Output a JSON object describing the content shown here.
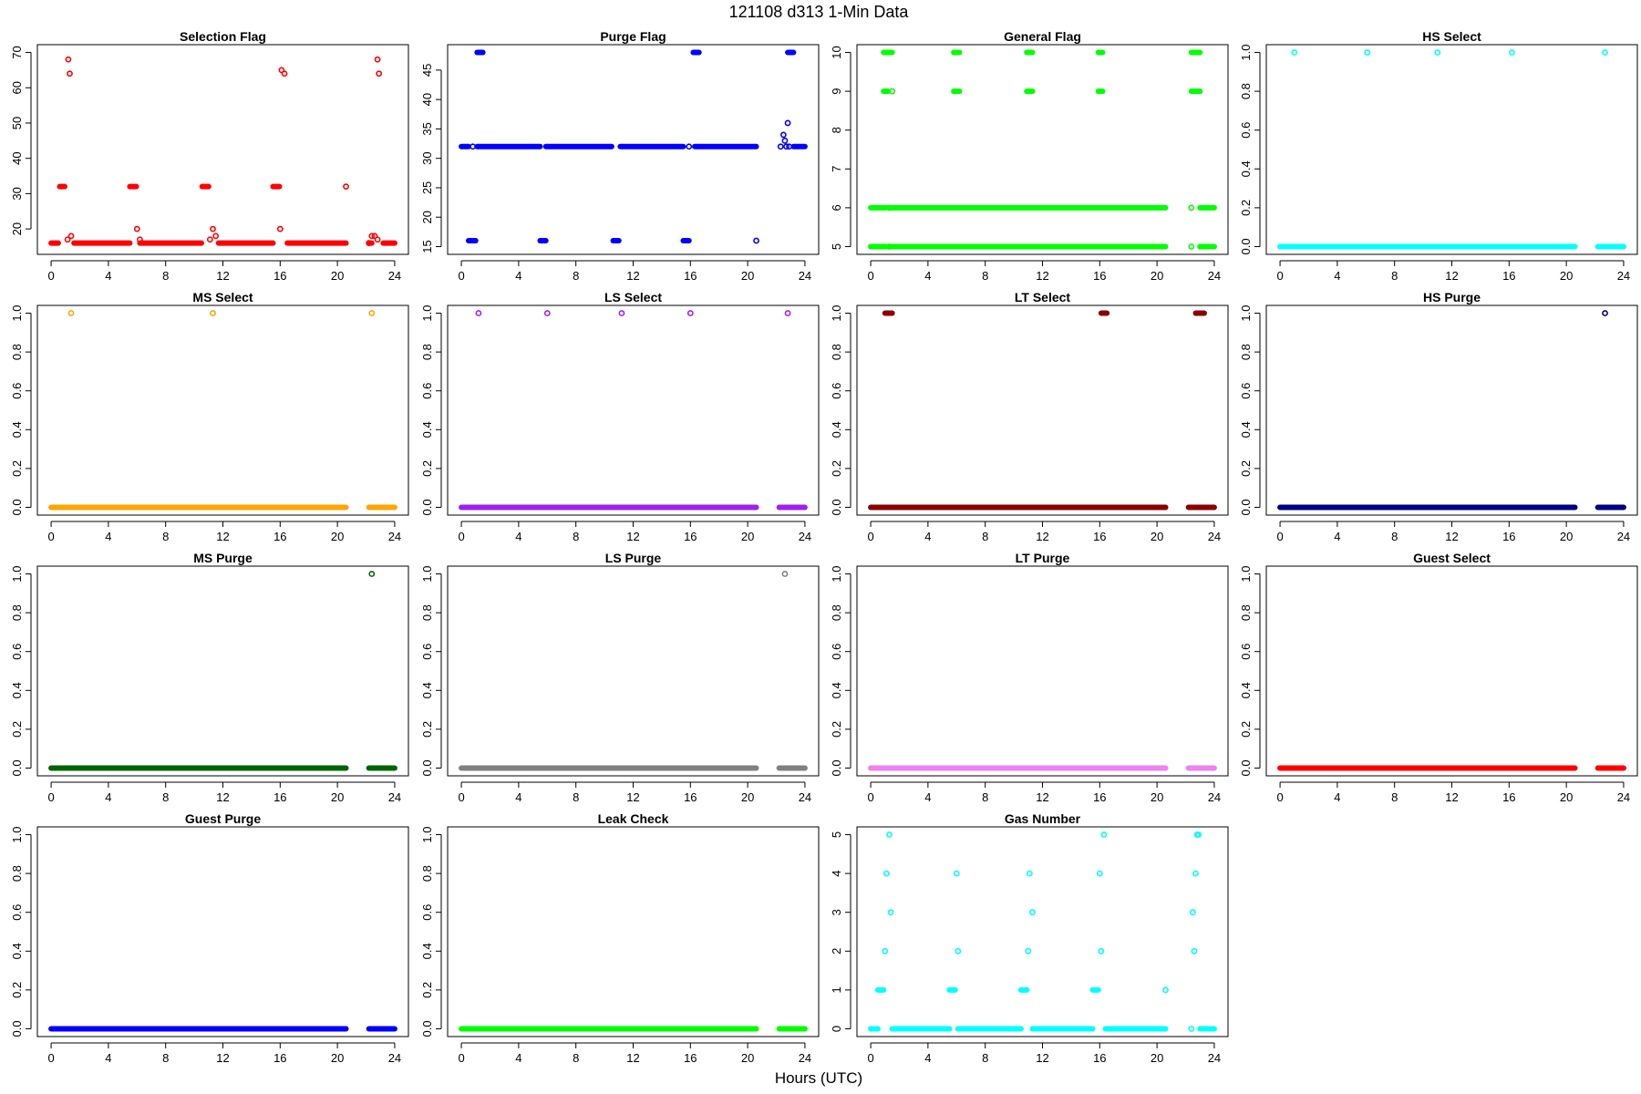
{
  "figure": {
    "title": "121108   d313   1-Min Data",
    "xlabel": "Hours (UTC)"
  },
  "chart_data": [
    {
      "type": "scatter",
      "title": "Selection Flag",
      "color": "#ff0000",
      "xlim": [
        0,
        24
      ],
      "ylim": [
        15,
        70
      ],
      "xticks": [
        0,
        4,
        8,
        12,
        16,
        20,
        24
      ],
      "yticks": [
        20,
        30,
        40,
        50,
        60,
        70
      ],
      "runs": [
        {
          "y": 16,
          "x": [
            [
              0.0,
              0.5
            ],
            [
              1.6,
              5.5
            ],
            [
              6.2,
              10.5
            ],
            [
              11.7,
              15.5
            ],
            [
              16.5,
              20.6
            ],
            [
              22.2,
              22.4
            ],
            [
              23.2,
              24.0
            ]
          ]
        },
        {
          "y": 32,
          "x": [
            [
              0.6,
              0.95
            ],
            [
              5.5,
              5.95
            ],
            [
              10.55,
              11.0
            ],
            [
              15.5,
              15.95
            ]
          ]
        }
      ],
      "points": [
        [
          1.15,
          17
        ],
        [
          1.4,
          18
        ],
        [
          1.2,
          68
        ],
        [
          1.3,
          64
        ],
        [
          6.0,
          20
        ],
        [
          6.2,
          17
        ],
        [
          11.1,
          17
        ],
        [
          11.3,
          20
        ],
        [
          11.5,
          18
        ],
        [
          16.0,
          20
        ],
        [
          16.1,
          65
        ],
        [
          16.3,
          64
        ],
        [
          20.6,
          32
        ],
        [
          22.2,
          16
        ],
        [
          22.4,
          18
        ],
        [
          22.6,
          18
        ],
        [
          22.8,
          17
        ],
        [
          22.8,
          68
        ],
        [
          22.9,
          64
        ]
      ]
    },
    {
      "type": "scatter",
      "title": "Purge Flag",
      "color": "#0000ff",
      "xlim": [
        0,
        24
      ],
      "ylim": [
        15,
        48
      ],
      "xticks": [
        0,
        4,
        8,
        12,
        16,
        20,
        24
      ],
      "yticks": [
        15,
        20,
        25,
        30,
        35,
        40,
        45
      ],
      "runs": [
        {
          "y": 32,
          "x": [
            [
              0.0,
              0.5
            ],
            [
              1.1,
              5.5
            ],
            [
              5.9,
              10.5
            ],
            [
              11.1,
              15.5
            ],
            [
              16.3,
              20.6
            ],
            [
              23.2,
              24.0
            ]
          ]
        },
        {
          "y": 16,
          "x": [
            [
              0.5,
              1.0
            ],
            [
              5.5,
              5.9
            ],
            [
              10.6,
              11.0
            ],
            [
              15.5,
              15.9
            ]
          ]
        },
        {
          "y": 48,
          "x": [
            [
              1.1,
              1.5
            ],
            [
              16.2,
              16.6
            ],
            [
              22.8,
              23.2
            ]
          ]
        }
      ],
      "points": [
        [
          0.8,
          32
        ],
        [
          15.9,
          32
        ],
        [
          20.6,
          16
        ],
        [
          22.3,
          32
        ],
        [
          22.5,
          34
        ],
        [
          22.6,
          33
        ],
        [
          22.7,
          32
        ],
        [
          22.8,
          36
        ],
        [
          22.9,
          32
        ]
      ]
    },
    {
      "type": "scatter",
      "title": "General Flag",
      "color": "#00ff00",
      "xlim": [
        0,
        24
      ],
      "ylim": [
        5,
        10
      ],
      "xticks": [
        0,
        4,
        8,
        12,
        16,
        20,
        24
      ],
      "yticks": [
        5,
        6,
        7,
        8,
        9,
        10
      ],
      "runs": [
        {
          "y": 5,
          "x": [
            [
              0.0,
              1.1
            ],
            [
              1.4,
              20.6
            ],
            [
              23.0,
              24.0
            ]
          ]
        },
        {
          "y": 6,
          "x": [
            [
              0.0,
              1.1
            ],
            [
              1.4,
              20.6
            ],
            [
              23.0,
              24.0
            ]
          ]
        },
        {
          "y": 10,
          "x": [
            [
              0.9,
              1.5
            ],
            [
              5.8,
              6.2
            ],
            [
              10.9,
              11.3
            ],
            [
              15.9,
              16.2
            ],
            [
              22.4,
              23.0
            ]
          ]
        },
        {
          "y": 9,
          "x": [
            [
              0.9,
              1.2
            ],
            [
              5.8,
              6.2
            ],
            [
              10.9,
              11.3
            ],
            [
              15.9,
              16.2
            ],
            [
              22.4,
              23.0
            ]
          ]
        }
      ],
      "points": [
        [
          1.3,
          5
        ],
        [
          1.3,
          6
        ],
        [
          1.5,
          9
        ],
        [
          22.4,
          5
        ],
        [
          22.4,
          6
        ]
      ]
    },
    {
      "type": "scatter",
      "title": "HS Select",
      "color": "#00ffff",
      "xlim": [
        0,
        24
      ],
      "ylim": [
        0,
        1
      ],
      "xticks": [
        0,
        4,
        8,
        12,
        16,
        20,
        24
      ],
      "yticks": [
        0.0,
        0.2,
        0.4,
        0.6,
        0.8,
        1.0
      ],
      "runs": [
        {
          "y": 0,
          "x": [
            [
              0.0,
              20.6
            ],
            [
              22.2,
              24.0
            ]
          ]
        }
      ],
      "points": [
        [
          1.0,
          1
        ],
        [
          6.1,
          1
        ],
        [
          11.0,
          1
        ],
        [
          16.2,
          1
        ],
        [
          22.7,
          1
        ]
      ]
    },
    {
      "type": "scatter",
      "title": "MS Select",
      "color": "#ffa500",
      "xlim": [
        0,
        24
      ],
      "ylim": [
        0,
        1
      ],
      "xticks": [
        0,
        4,
        8,
        12,
        16,
        20,
        24
      ],
      "yticks": [
        0.0,
        0.2,
        0.4,
        0.6,
        0.8,
        1.0
      ],
      "runs": [
        {
          "y": 0,
          "x": [
            [
              0.0,
              20.6
            ],
            [
              22.2,
              24.0
            ]
          ]
        }
      ],
      "points": [
        [
          1.4,
          1
        ],
        [
          11.3,
          1
        ],
        [
          22.4,
          1
        ]
      ]
    },
    {
      "type": "scatter",
      "title": "LS Select",
      "color": "#a020f0",
      "xlim": [
        0,
        24
      ],
      "ylim": [
        0,
        1
      ],
      "xticks": [
        0,
        4,
        8,
        12,
        16,
        20,
        24
      ],
      "yticks": [
        0.0,
        0.2,
        0.4,
        0.6,
        0.8,
        1.0
      ],
      "runs": [
        {
          "y": 0,
          "x": [
            [
              0.0,
              20.6
            ],
            [
              22.2,
              24.0
            ]
          ]
        }
      ],
      "points": [
        [
          1.2,
          1
        ],
        [
          6.0,
          1
        ],
        [
          11.2,
          1
        ],
        [
          16.0,
          1
        ],
        [
          22.8,
          1
        ]
      ]
    },
    {
      "type": "scatter",
      "title": "LT Select",
      "color": "#8b0000",
      "xlim": [
        0,
        24
      ],
      "ylim": [
        0,
        1
      ],
      "xticks": [
        0,
        4,
        8,
        12,
        16,
        20,
        24
      ],
      "yticks": [
        0.0,
        0.2,
        0.4,
        0.6,
        0.8,
        1.0
      ],
      "runs": [
        {
          "y": 0,
          "x": [
            [
              0.0,
              20.6
            ],
            [
              22.2,
              24.0
            ]
          ]
        },
        {
          "y": 1,
          "x": [
            [
              1.0,
              1.5
            ],
            [
              16.1,
              16.5
            ],
            [
              22.7,
              23.3
            ]
          ]
        }
      ],
      "points": []
    },
    {
      "type": "scatter",
      "title": "HS Purge",
      "color": "#000080",
      "xlim": [
        0,
        24
      ],
      "ylim": [
        0,
        1
      ],
      "xticks": [
        0,
        4,
        8,
        12,
        16,
        20,
        24
      ],
      "yticks": [
        0.0,
        0.2,
        0.4,
        0.6,
        0.8,
        1.0
      ],
      "runs": [
        {
          "y": 0,
          "x": [
            [
              0.0,
              20.6
            ],
            [
              22.2,
              24.0
            ]
          ]
        }
      ],
      "points": [
        [
          22.7,
          1
        ]
      ]
    },
    {
      "type": "scatter",
      "title": "MS Purge",
      "color": "#006400",
      "xlim": [
        0,
        24
      ],
      "ylim": [
        0,
        1
      ],
      "xticks": [
        0,
        4,
        8,
        12,
        16,
        20,
        24
      ],
      "yticks": [
        0.0,
        0.2,
        0.4,
        0.6,
        0.8,
        1.0
      ],
      "runs": [
        {
          "y": 0,
          "x": [
            [
              0.0,
              20.6
            ],
            [
              22.2,
              24.0
            ]
          ]
        }
      ],
      "points": [
        [
          22.4,
          1
        ]
      ]
    },
    {
      "type": "scatter",
      "title": "LS Purge",
      "color": "#808080",
      "xlim": [
        0,
        24
      ],
      "ylim": [
        0,
        1
      ],
      "xticks": [
        0,
        4,
        8,
        12,
        16,
        20,
        24
      ],
      "yticks": [
        0.0,
        0.2,
        0.4,
        0.6,
        0.8,
        1.0
      ],
      "runs": [
        {
          "y": 0,
          "x": [
            [
              0.0,
              20.6
            ],
            [
              22.2,
              24.0
            ]
          ]
        }
      ],
      "points": [
        [
          22.6,
          1
        ]
      ]
    },
    {
      "type": "scatter",
      "title": "LT Purge",
      "color": "#ee82ee",
      "xlim": [
        0,
        24
      ],
      "ylim": [
        0,
        1
      ],
      "xticks": [
        0,
        4,
        8,
        12,
        16,
        20,
        24
      ],
      "yticks": [
        0.0,
        0.2,
        0.4,
        0.6,
        0.8,
        1.0
      ],
      "runs": [
        {
          "y": 0,
          "x": [
            [
              0.0,
              20.6
            ],
            [
              22.2,
              24.0
            ]
          ]
        }
      ],
      "points": []
    },
    {
      "type": "scatter",
      "title": "Guest Select",
      "color": "#ff0000",
      "xlim": [
        0,
        24
      ],
      "ylim": [
        0,
        1
      ],
      "xticks": [
        0,
        4,
        8,
        12,
        16,
        20,
        24
      ],
      "yticks": [
        0.0,
        0.2,
        0.4,
        0.6,
        0.8,
        1.0
      ],
      "runs": [
        {
          "y": 0,
          "x": [
            [
              0.0,
              20.6
            ],
            [
              22.2,
              24.0
            ]
          ]
        }
      ],
      "points": []
    },
    {
      "type": "scatter",
      "title": "Guest Purge",
      "color": "#0000ff",
      "xlim": [
        0,
        24
      ],
      "ylim": [
        0,
        1
      ],
      "xticks": [
        0,
        4,
        8,
        12,
        16,
        20,
        24
      ],
      "yticks": [
        0.0,
        0.2,
        0.4,
        0.6,
        0.8,
        1.0
      ],
      "runs": [
        {
          "y": 0,
          "x": [
            [
              0.0,
              20.6
            ],
            [
              22.2,
              24.0
            ]
          ]
        }
      ],
      "points": []
    },
    {
      "type": "scatter",
      "title": "Leak Check",
      "color": "#00ff00",
      "xlim": [
        0,
        24
      ],
      "ylim": [
        0,
        1
      ],
      "xticks": [
        0,
        4,
        8,
        12,
        16,
        20,
        24
      ],
      "yticks": [
        0.0,
        0.2,
        0.4,
        0.6,
        0.8,
        1.0
      ],
      "runs": [
        {
          "y": 0,
          "x": [
            [
              0.0,
              20.6
            ],
            [
              22.2,
              24.0
            ]
          ]
        }
      ],
      "points": []
    },
    {
      "type": "scatter",
      "title": "Gas Number",
      "color": "#00ffff",
      "xlim": [
        0,
        24
      ],
      "ylim": [
        0,
        5
      ],
      "xticks": [
        0,
        4,
        8,
        12,
        16,
        20,
        24
      ],
      "yticks": [
        0,
        1,
        2,
        3,
        4,
        5
      ],
      "runs": [
        {
          "y": 0,
          "x": [
            [
              0.0,
              0.5
            ],
            [
              1.5,
              5.5
            ],
            [
              6.1,
              10.5
            ],
            [
              11.3,
              15.5
            ],
            [
              16.4,
              20.6
            ],
            [
              23.0,
              24.0
            ]
          ]
        },
        {
          "y": 1,
          "x": [
            [
              0.5,
              0.9
            ],
            [
              5.5,
              5.9
            ],
            [
              10.5,
              10.9
            ],
            [
              15.5,
              15.9
            ]
          ]
        }
      ],
      "points": [
        [
          1.0,
          2
        ],
        [
          1.1,
          4
        ],
        [
          1.3,
          5
        ],
        [
          1.4,
          3
        ],
        [
          6.0,
          4
        ],
        [
          6.1,
          2
        ],
        [
          11.0,
          2
        ],
        [
          11.1,
          4
        ],
        [
          11.3,
          3
        ],
        [
          16.0,
          4
        ],
        [
          16.1,
          2
        ],
        [
          16.3,
          5
        ],
        [
          20.6,
          1
        ],
        [
          22.4,
          0
        ],
        [
          22.5,
          3
        ],
        [
          22.6,
          2
        ],
        [
          22.7,
          4
        ],
        [
          22.8,
          5
        ],
        [
          22.9,
          5
        ]
      ]
    }
  ]
}
